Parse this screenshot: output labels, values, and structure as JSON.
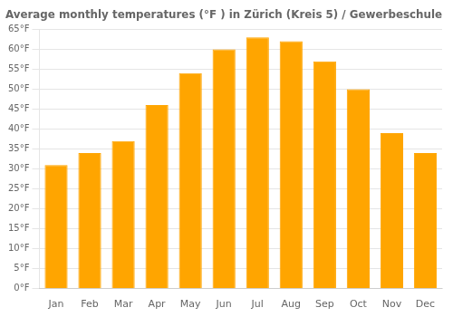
{
  "chart_data": {
    "type": "bar",
    "title": "Average monthly temperatures (°F ) in Zürich (Kreis 5) / Gewerbeschule",
    "categories": [
      "Jan",
      "Feb",
      "Mar",
      "Apr",
      "May",
      "Jun",
      "Jul",
      "Aug",
      "Sep",
      "Oct",
      "Nov",
      "Dec"
    ],
    "values": [
      31,
      34,
      37,
      46,
      54,
      60,
      63,
      62,
      57,
      50,
      39,
      34
    ],
    "color": "#FFA500",
    "ylim": [
      0,
      65
    ],
    "yticks": [
      {
        "value": 0,
        "label": "0°F"
      },
      {
        "value": 5,
        "label": "5°F"
      },
      {
        "value": 10,
        "label": "10°F"
      },
      {
        "value": 15,
        "label": "15°F"
      },
      {
        "value": 20,
        "label": "20°F"
      },
      {
        "value": 25,
        "label": "25°F"
      },
      {
        "value": 30,
        "label": "30°F"
      },
      {
        "value": 35,
        "label": "35°F"
      },
      {
        "value": 40,
        "label": "40°F"
      },
      {
        "value": 45,
        "label": "45°F"
      },
      {
        "value": 50,
        "label": "50°F"
      },
      {
        "value": 55,
        "label": "55°F"
      },
      {
        "value": 60,
        "label": "60°F"
      },
      {
        "value": 65,
        "label": "65°F"
      }
    ],
    "grid": true
  }
}
